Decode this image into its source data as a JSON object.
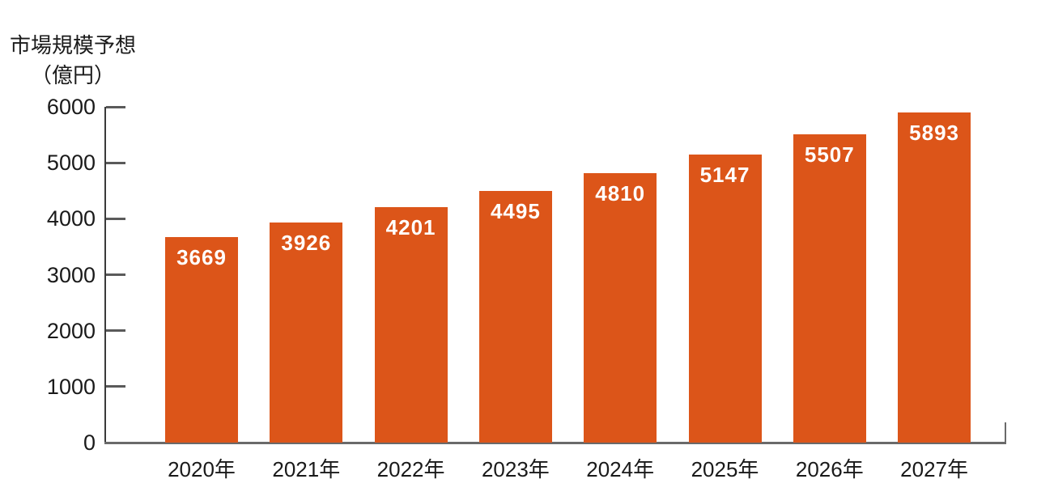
{
  "page": {
    "background": "#ffffff"
  },
  "chart_data": {
    "type": "bar",
    "title": "市場規模予想",
    "title_line2": "（億円）",
    "ylabel": "市場規模予想（億円）",
    "categories": [
      "2020年",
      "2021年",
      "2022年",
      "2023年",
      "2024年",
      "2025年",
      "2026年",
      "2027年"
    ],
    "values": [
      3669,
      3926,
      4201,
      4495,
      4810,
      5147,
      5507,
      5893
    ],
    "ylim": [
      0,
      6000
    ],
    "yticks": [
      0,
      1000,
      2000,
      3000,
      4000,
      5000,
      6000
    ],
    "grid": false,
    "legend": false,
    "bar_color": "#dc5519",
    "value_label_color": "#ffffff",
    "axis_color": "#6a6a6a",
    "tick_color": "#5a5a5a",
    "text_color": "#1a1a1a"
  }
}
